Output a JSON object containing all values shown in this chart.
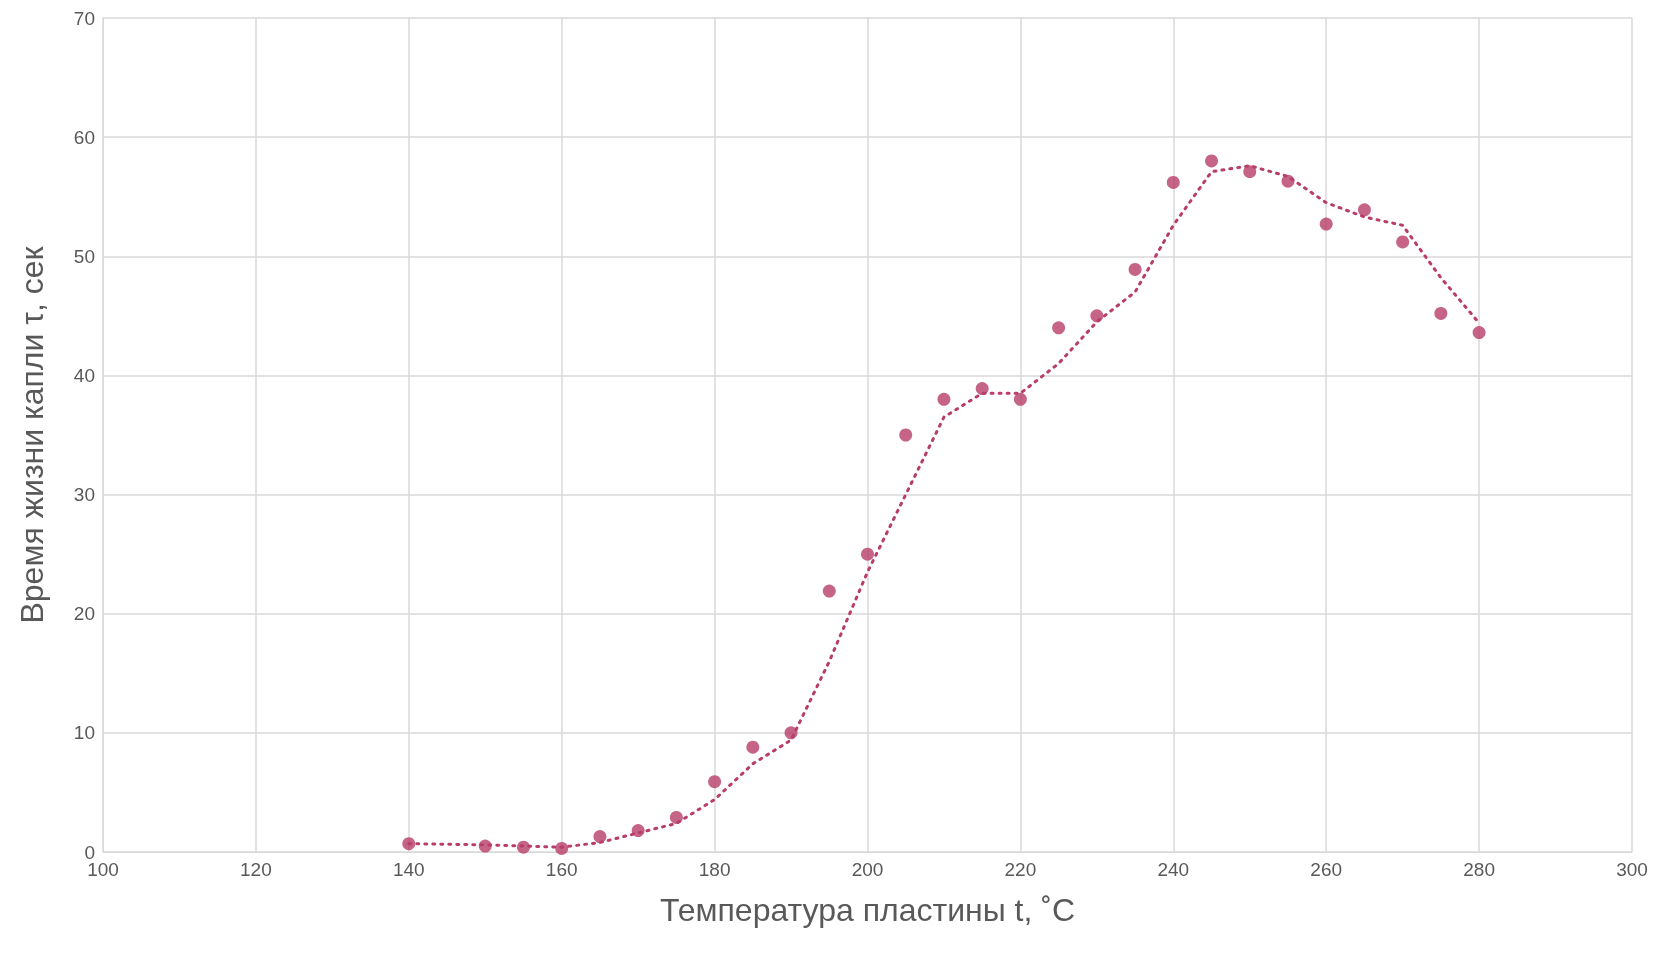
{
  "chart_data": {
    "type": "scatter",
    "xlabel": "Температура пластины t, ˚C",
    "ylabel": "Время жизни капли τ, сек",
    "xlim": [
      100,
      300
    ],
    "xticks": [
      100,
      120,
      140,
      160,
      180,
      200,
      220,
      240,
      260,
      280,
      300
    ],
    "ylim": [
      0,
      70
    ],
    "yticks": [
      0,
      10,
      20,
      30,
      40,
      50,
      60,
      70
    ],
    "grid": true,
    "series": [
      {
        "color": "#b83d6a",
        "marker": "circle",
        "x": [
          140,
          150,
          155,
          160,
          165,
          170,
          175,
          180,
          185,
          190,
          195,
          200,
          205,
          210,
          215,
          220,
          225,
          230,
          235,
          240,
          245,
          250,
          255,
          260,
          265,
          270,
          275,
          280
        ],
        "values": [
          0.7,
          0.5,
          0.4,
          0.3,
          1.3,
          1.8,
          2.9,
          5.9,
          8.8,
          10,
          21.9,
          25,
          35,
          38,
          38.9,
          38,
          44,
          45,
          48.9,
          56.2,
          58,
          57.1,
          56.3,
          52.7,
          53.9,
          51.2,
          45.2,
          43.6
        ]
      },
      {
        "type": "line",
        "color": "#b83d6a",
        "marker": "none",
        "line_style": "dotted",
        "x": [
          140,
          150,
          155,
          160,
          165,
          170,
          175,
          180,
          185,
          190,
          195,
          200,
          205,
          210,
          215,
          220,
          225,
          230,
          235,
          240,
          245,
          250,
          255,
          260,
          265,
          270,
          275,
          280
        ],
        "values": [
          0.7,
          0.6,
          0.5,
          0.4,
          0.8,
          1.6,
          2.4,
          4.4,
          7.4,
          9.4,
          16,
          23.5,
          30,
          36.5,
          38.5,
          38.5,
          41,
          44.5,
          47,
          52.6,
          57.1,
          57.6,
          56.7,
          54.5,
          53.3,
          52.6,
          48.2,
          44.4
        ]
      }
    ]
  }
}
